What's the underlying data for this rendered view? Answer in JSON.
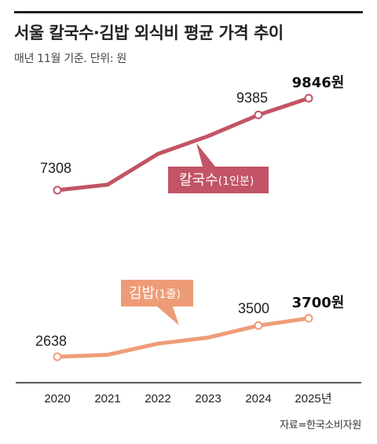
{
  "title": "서울 칼국수·김밥 외식비 평균 가격 추이",
  "subtitle": "매년 11월 기준. 단위: 원",
  "source": "자료=한국소비자원",
  "colors": {
    "kalguksu": "#c25466",
    "gimbap": "#ee9c78"
  },
  "chart_data": {
    "type": "line",
    "categories": [
      "2020",
      "2021",
      "2022",
      "2023",
      "2024",
      "2025년"
    ],
    "unit": "원",
    "series": [
      {
        "name": "칼국수(1인분)",
        "label_main": "칼국수",
        "label_sub": "(1인분)",
        "values": [
          7308,
          7460,
          8308,
          8800,
          9385,
          9846
        ],
        "point_labels": [
          "7308",
          "",
          "",
          "",
          "9385",
          "9846원"
        ]
      },
      {
        "name": "김밥(1줄)",
        "label_main": "김밥",
        "label_sub": "(1줄)",
        "values": [
          2638,
          2692,
          3000,
          3167,
          3500,
          3700
        ],
        "point_labels": [
          "2638",
          "",
          "",
          "",
          "3500",
          "3700원"
        ]
      }
    ]
  }
}
